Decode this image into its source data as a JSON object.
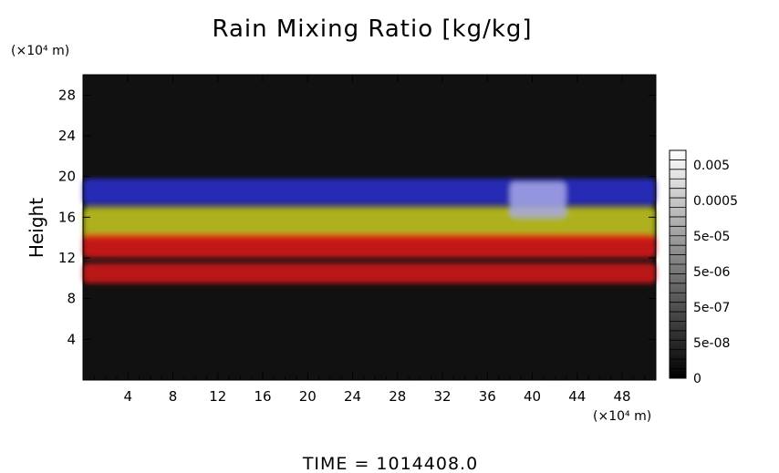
{
  "chart_data": {
    "type": "heatmap",
    "title": "Rain Mixing Ratio [kg/kg]",
    "ylabel": "Height",
    "x_unit": "(×10⁴ m)",
    "y_unit": "(×10⁴ m)",
    "xlim": [
      0,
      51
    ],
    "ylim": [
      0,
      30
    ],
    "x_ticks": [
      4,
      8,
      12,
      16,
      20,
      24,
      28,
      32,
      36,
      40,
      44,
      48
    ],
    "y_ticks": [
      4,
      8,
      12,
      16,
      20,
      24,
      28
    ],
    "colorbar": {
      "labels": [
        "0.005",
        "0.0005",
        "5e-05",
        "5e-06",
        "5e-07",
        "5e-08",
        "0"
      ],
      "colors": [
        "#000000",
        "#ffffff"
      ]
    },
    "background_color": "#111111",
    "layers": [
      {
        "color": "#2a2fd0",
        "x": [
          0,
          51
        ],
        "y": [
          17.2,
          19.8
        ]
      },
      {
        "color": "#c8cc20",
        "x": [
          0,
          51
        ],
        "y": [
          13.8,
          17.0
        ]
      },
      {
        "color": "#e01818",
        "x": [
          0,
          51
        ],
        "y": [
          12.0,
          14.4
        ]
      },
      {
        "color": "#d81818",
        "x": [
          0,
          51
        ],
        "y": [
          9.5,
          11.5
        ]
      },
      {
        "color": "#a8a8e8",
        "x": [
          38,
          43
        ],
        "y": [
          16.0,
          19.5
        ]
      }
    ],
    "footer": "TIME  =  1014408.0"
  }
}
